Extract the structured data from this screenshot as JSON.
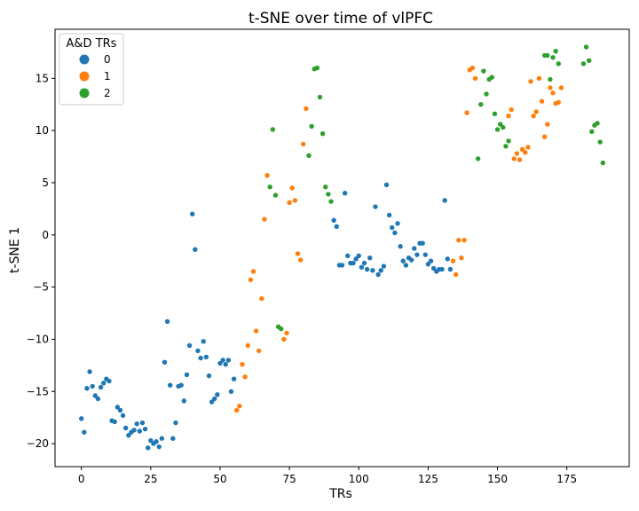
{
  "chart_data": {
    "type": "scatter",
    "title": "t-SNE over time of vlPFC",
    "xlabel": "TRs",
    "ylabel": "t-SNE 1",
    "xlim": [
      -9.5,
      197.5
    ],
    "ylim": [
      -22.2,
      19.7
    ],
    "xticks": [
      0,
      25,
      50,
      75,
      100,
      125,
      150,
      175
    ],
    "yticks": [
      -20,
      -15,
      -10,
      -5,
      0,
      5,
      10,
      15
    ],
    "grid": false,
    "legend": {
      "title": "A&D TRs",
      "placement": "top-left",
      "entries": [
        {
          "label": "0",
          "color": "#1f77b4"
        },
        {
          "label": "1",
          "color": "#ff7f0e"
        },
        {
          "label": "2",
          "color": "#2ca02c"
        }
      ]
    },
    "series": [
      {
        "name": "0",
        "color": "#1f77b4",
        "points": [
          [
            0,
            -17.6
          ],
          [
            1,
            -18.9
          ],
          [
            2,
            -14.7
          ],
          [
            3,
            -13.1
          ],
          [
            4,
            -14.5
          ],
          [
            5,
            -15.4
          ],
          [
            6,
            -15.7
          ],
          [
            7,
            -14.6
          ],
          [
            8,
            -14.2
          ],
          [
            9,
            -13.8
          ],
          [
            10,
            -14.0
          ],
          [
            11,
            -17.8
          ],
          [
            12,
            -17.9
          ],
          [
            13,
            -16.5
          ],
          [
            14,
            -16.8
          ],
          [
            15,
            -17.3
          ],
          [
            16,
            -18.5
          ],
          [
            17,
            -19.2
          ],
          [
            18,
            -18.9
          ],
          [
            19,
            -18.7
          ],
          [
            20,
            -18.1
          ],
          [
            21,
            -18.8
          ],
          [
            22,
            -18.0
          ],
          [
            23,
            -18.6
          ],
          [
            24,
            -20.4
          ],
          [
            25,
            -19.7
          ],
          [
            26,
            -20.0
          ],
          [
            27,
            -19.8
          ],
          [
            28,
            -20.3
          ],
          [
            29,
            -19.5
          ],
          [
            30,
            -12.2
          ],
          [
            31,
            -8.3
          ],
          [
            32,
            -14.4
          ],
          [
            33,
            -19.5
          ],
          [
            34,
            -18.0
          ],
          [
            35,
            -14.5
          ],
          [
            36,
            -14.4
          ],
          [
            37,
            -15.9
          ],
          [
            38,
            -13.4
          ],
          [
            39,
            -10.6
          ],
          [
            40,
            2.0
          ],
          [
            41,
            -1.4
          ],
          [
            42,
            -11.1
          ],
          [
            43,
            -11.8
          ],
          [
            44,
            -10.2
          ],
          [
            45,
            -11.7
          ],
          [
            46,
            -13.5
          ],
          [
            47,
            -16.0
          ],
          [
            48,
            -15.7
          ],
          [
            49,
            -15.3
          ],
          [
            50,
            -12.3
          ],
          [
            51,
            -12.0
          ],
          [
            52,
            -12.4
          ],
          [
            53,
            -12.0
          ],
          [
            54,
            -15.0
          ],
          [
            55,
            -13.8
          ],
          [
            91,
            1.4
          ],
          [
            92,
            0.8
          ],
          [
            93,
            -2.9
          ],
          [
            94,
            -2.9
          ],
          [
            95,
            4.0
          ],
          [
            96,
            -2.0
          ],
          [
            97,
            -2.7
          ],
          [
            98,
            -2.7
          ],
          [
            99,
            -2.3
          ],
          [
            100,
            -2.0
          ],
          [
            101,
            -3.1
          ],
          [
            102,
            -2.7
          ],
          [
            103,
            -3.3
          ],
          [
            104,
            -2.2
          ],
          [
            105,
            -3.4
          ],
          [
            106,
            2.7
          ],
          [
            107,
            -3.8
          ],
          [
            108,
            -3.4
          ],
          [
            109,
            -3.0
          ],
          [
            110,
            4.8
          ],
          [
            111,
            1.9
          ],
          [
            112,
            0.7
          ],
          [
            113,
            0.2
          ],
          [
            114,
            1.1
          ],
          [
            115,
            -1.1
          ],
          [
            116,
            -2.5
          ],
          [
            117,
            -2.9
          ],
          [
            118,
            -2.2
          ],
          [
            119,
            -2.4
          ],
          [
            120,
            -1.3
          ],
          [
            121,
            -1.9
          ],
          [
            122,
            -0.8
          ],
          [
            123,
            -0.8
          ],
          [
            124,
            -1.9
          ],
          [
            125,
            -2.8
          ],
          [
            126,
            -2.5
          ],
          [
            127,
            -3.2
          ],
          [
            128,
            -3.5
          ],
          [
            129,
            -3.3
          ],
          [
            130,
            -3.3
          ],
          [
            131,
            3.3
          ],
          [
            132,
            -2.3
          ],
          [
            133,
            -3.3
          ]
        ]
      },
      {
        "name": "1",
        "color": "#ff7f0e",
        "points": [
          [
            56,
            -16.8
          ],
          [
            57,
            -16.4
          ],
          [
            58,
            -12.4
          ],
          [
            59,
            -13.6
          ],
          [
            60,
            -10.6
          ],
          [
            61,
            -4.3
          ],
          [
            62,
            -3.5
          ],
          [
            63,
            -9.2
          ],
          [
            64,
            -11.1
          ],
          [
            65,
            -6.1
          ],
          [
            66,
            1.5
          ],
          [
            67,
            5.7
          ],
          [
            73,
            -10.0
          ],
          [
            74,
            -9.4
          ],
          [
            75,
            3.1
          ],
          [
            76,
            4.5
          ],
          [
            77,
            3.3
          ],
          [
            78,
            -1.8
          ],
          [
            79,
            -2.4
          ],
          [
            80,
            8.7
          ],
          [
            81,
            12.1
          ],
          [
            134,
            -2.5
          ],
          [
            135,
            -3.8
          ],
          [
            136,
            -0.5
          ],
          [
            137,
            -2.2
          ],
          [
            138,
            -0.5
          ],
          [
            139,
            11.7
          ],
          [
            140,
            15.8
          ],
          [
            141,
            16.0
          ],
          [
            142,
            15.0
          ],
          [
            154,
            11.4
          ],
          [
            155,
            12.0
          ],
          [
            156,
            7.3
          ],
          [
            157,
            7.8
          ],
          [
            158,
            7.2
          ],
          [
            159,
            8.2
          ],
          [
            160,
            7.9
          ],
          [
            161,
            8.4
          ],
          [
            162,
            14.7
          ],
          [
            163,
            11.4
          ],
          [
            164,
            11.8
          ],
          [
            165,
            15.0
          ],
          [
            166,
            12.8
          ],
          [
            167,
            9.4
          ],
          [
            168,
            10.6
          ],
          [
            169,
            14.1
          ],
          [
            170,
            13.6
          ],
          [
            171,
            12.6
          ],
          [
            172,
            12.7
          ],
          [
            173,
            14.1
          ]
        ]
      },
      {
        "name": "2",
        "color": "#2ca02c",
        "points": [
          [
            68,
            4.6
          ],
          [
            69,
            10.1
          ],
          [
            70,
            3.8
          ],
          [
            71,
            -8.8
          ],
          [
            72,
            -9.0
          ],
          [
            82,
            7.6
          ],
          [
            83,
            10.4
          ],
          [
            84,
            15.9
          ],
          [
            85,
            16.0
          ],
          [
            86,
            13.2
          ],
          [
            87,
            9.7
          ],
          [
            88,
            4.6
          ],
          [
            89,
            3.9
          ],
          [
            90,
            3.2
          ],
          [
            143,
            7.3
          ],
          [
            144,
            12.5
          ],
          [
            145,
            15.7
          ],
          [
            146,
            13.5
          ],
          [
            147,
            14.9
          ],
          [
            148,
            15.1
          ],
          [
            149,
            11.6
          ],
          [
            150,
            10.1
          ],
          [
            151,
            10.6
          ],
          [
            152,
            10.3
          ],
          [
            153,
            8.5
          ],
          [
            154,
            9.0
          ],
          [
            167,
            17.2
          ],
          [
            168,
            17.2
          ],
          [
            169,
            14.9
          ],
          [
            170,
            17.0
          ],
          [
            171,
            17.6
          ],
          [
            172,
            16.4
          ],
          [
            181,
            16.4
          ],
          [
            182,
            18.0
          ],
          [
            183,
            16.7
          ],
          [
            184,
            9.9
          ],
          [
            185,
            10.5
          ],
          [
            186,
            10.7
          ],
          [
            187,
            8.9
          ],
          [
            188,
            6.9
          ]
        ]
      }
    ]
  }
}
